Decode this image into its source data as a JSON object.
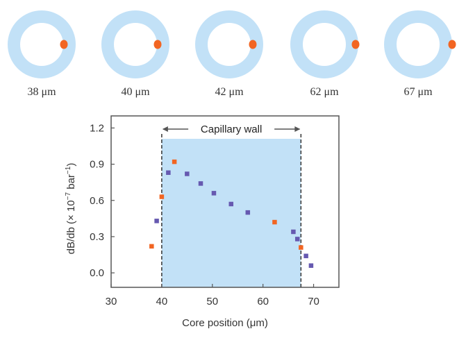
{
  "cross_sections": [
    {
      "label": "38 μm"
    },
    {
      "label": "40 μm"
    },
    {
      "label": "42 μm"
    },
    {
      "label": "62 μm"
    },
    {
      "label": "67 μm"
    }
  ],
  "chart_data": {
    "type": "scatter",
    "xlabel": "Core position (μm)",
    "ylabel_main": "dB/db (× 10",
    "ylabel_exp1": "−7",
    "ylabel_mid": " bar",
    "ylabel_exp2": "−1",
    "ylabel_end": ")",
    "xlim": [
      30,
      75
    ],
    "ylim": [
      -0.12,
      1.3
    ],
    "x_ticks": [
      30,
      40,
      50,
      60,
      70
    ],
    "y_ticks": [
      0.0,
      0.3,
      0.6,
      0.9,
      1.2
    ],
    "y_tick_labels": [
      "0.0",
      "0.3",
      "0.6",
      "0.9",
      "1.2"
    ],
    "grid": false,
    "shaded_region": {
      "x_start": 40,
      "x_end": 67.5,
      "label": "Capillary wall"
    },
    "series": [
      {
        "color": "#f26522",
        "marker": "square",
        "points": [
          [
            38,
            0.22
          ],
          [
            40,
            0.63
          ],
          [
            42.5,
            0.92
          ],
          [
            62.3,
            0.42
          ],
          [
            67.5,
            0.21
          ]
        ]
      },
      {
        "color": "#6659b0",
        "marker": "square",
        "points": [
          [
            39,
            0.43
          ],
          [
            41.3,
            0.83
          ],
          [
            45,
            0.82
          ],
          [
            47.7,
            0.74
          ],
          [
            50.3,
            0.66
          ],
          [
            53.7,
            0.57
          ],
          [
            57,
            0.5
          ],
          [
            66,
            0.34
          ],
          [
            66.8,
            0.28
          ],
          [
            68.5,
            0.14
          ],
          [
            69.5,
            0.06
          ]
        ]
      }
    ]
  },
  "colors": {
    "ring": "#c2e1f7",
    "core_dot": "#f26522",
    "shade": "#c2e1f7",
    "axis": "#555555"
  }
}
